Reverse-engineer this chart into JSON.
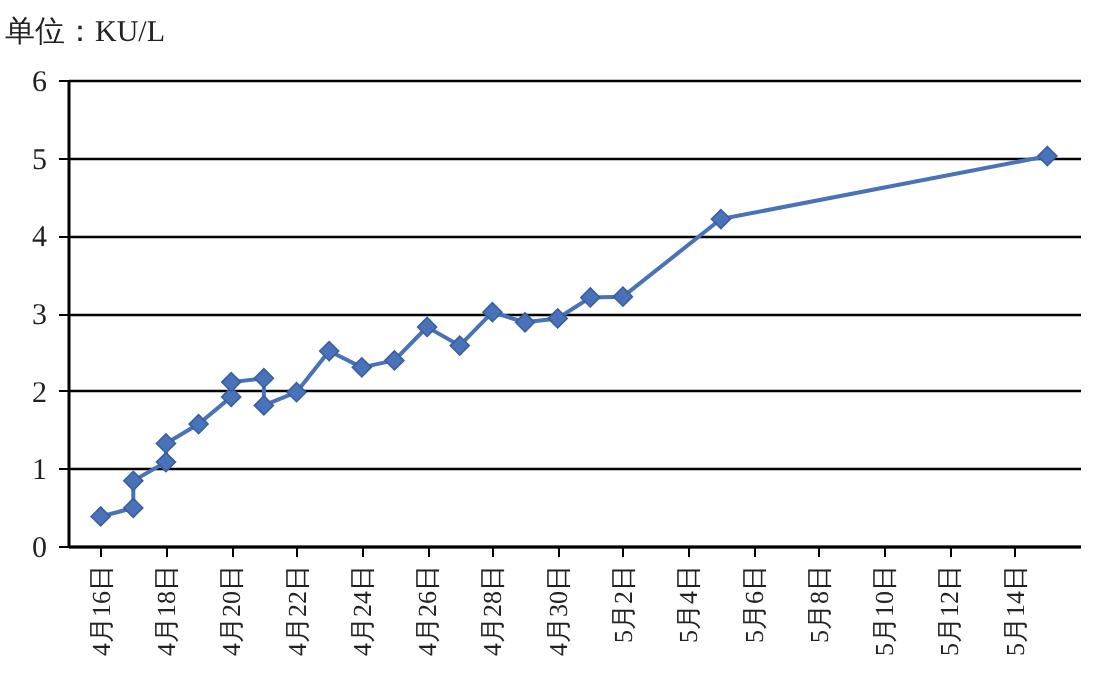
{
  "chart_data": {
    "type": "line",
    "ylabel": "单位：KU/L",
    "x": [
      "--04-16",
      "--04-17",
      "--04-17",
      "--04-18",
      "--04-18",
      "--04-19",
      "--04-20",
      "--04-20",
      "--04-21",
      "--04-21",
      "--04-22",
      "--04-23",
      "--04-24",
      "--04-25",
      "--04-26",
      "--04-27",
      "--04-28",
      "--04-29",
      "--04-30",
      "--05-01",
      "--05-02",
      "--05-05",
      "--05-15"
    ],
    "series": [
      {
        "color": "#4a72b8",
        "values": [
          0.38,
          0.49,
          0.84,
          1.08,
          1.32,
          1.57,
          1.92,
          2.11,
          2.16,
          1.81,
          1.98,
          2.51,
          2.3,
          2.39,
          2.82,
          2.58,
          3.01,
          2.88,
          2.93,
          3.2,
          3.21,
          4.21,
          5.02
        ]
      }
    ],
    "xlim": [
      "--04-15",
      "--05-16"
    ],
    "xticks": [
      {
        "value": "--04-16",
        "label": "4月16日"
      },
      {
        "value": "--04-18",
        "label": "4月18日"
      },
      {
        "value": "--04-20",
        "label": "4月20日"
      },
      {
        "value": "--04-22",
        "label": "4月22日"
      },
      {
        "value": "--04-24",
        "label": "4月24日"
      },
      {
        "value": "--04-26",
        "label": "4月26日"
      },
      {
        "value": "--04-28",
        "label": "4月28日"
      },
      {
        "value": "--04-30",
        "label": "4月30日"
      },
      {
        "value": "--05-02",
        "label": "5月2日"
      },
      {
        "value": "--05-04",
        "label": "5月4日"
      },
      {
        "value": "--05-06",
        "label": "5月6日"
      },
      {
        "value": "--05-08",
        "label": "5月8日"
      },
      {
        "value": "--05-10",
        "label": "5月10日"
      },
      {
        "value": "--05-12",
        "label": "5月12日"
      },
      {
        "value": "--05-14",
        "label": "5月14日"
      }
    ],
    "ylim": [
      0,
      6
    ],
    "yticks": [
      0,
      1,
      2,
      3,
      4,
      5,
      6
    ],
    "grid": "y",
    "marker": "diamond",
    "line_style": "solid"
  }
}
